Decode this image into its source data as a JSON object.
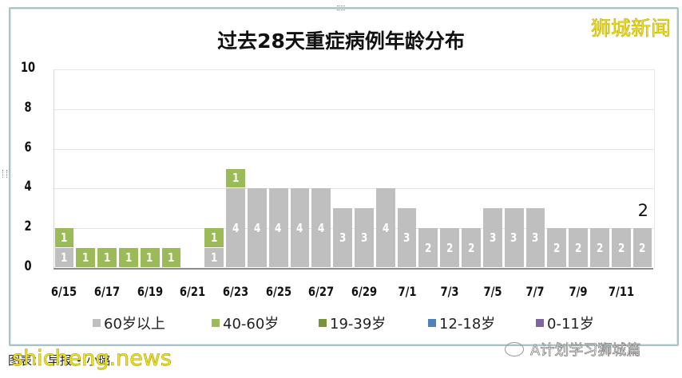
{
  "chart_data": {
    "type": "bar",
    "stacked": true,
    "title": "过去28天重症病例年龄分布",
    "xlabel": "",
    "ylabel": "",
    "ylim": [
      0,
      10
    ],
    "yticks": [
      0,
      2,
      4,
      6,
      8,
      10
    ],
    "grid": true,
    "legend_position": "bottom",
    "categories": [
      "6/15",
      "6/16",
      "6/17",
      "6/18",
      "6/19",
      "6/20",
      "6/21",
      "6/22",
      "6/23",
      "6/24",
      "6/25",
      "6/26",
      "6/27",
      "6/28",
      "6/29",
      "6/30",
      "7/1",
      "7/2",
      "7/3",
      "7/4",
      "7/5",
      "7/6",
      "7/7",
      "7/8",
      "7/9",
      "7/10",
      "7/11",
      "7/12"
    ],
    "xtick_labels": [
      "6/15",
      "6/17",
      "6/19",
      "6/21",
      "6/23",
      "6/25",
      "6/27",
      "6/29",
      "7/1",
      "7/3",
      "7/5",
      "7/7",
      "7/9",
      "7/11"
    ],
    "series": [
      {
        "name": "60岁以上",
        "color": "#bfbfbf",
        "values": [
          1,
          0,
          0,
          0,
          0,
          0,
          0,
          1,
          4,
          4,
          4,
          4,
          4,
          3,
          3,
          4,
          3,
          2,
          2,
          2,
          3,
          3,
          3,
          2,
          2,
          2,
          2,
          2
        ]
      },
      {
        "name": "40-60岁",
        "color": "#9bbb59",
        "values": [
          1,
          1,
          1,
          1,
          1,
          1,
          0,
          1,
          1,
          0,
          0,
          0,
          0,
          0,
          0,
          0,
          0,
          0,
          0,
          0,
          0,
          0,
          0,
          0,
          0,
          0,
          0,
          0
        ]
      },
      {
        "name": "19-39岁",
        "color": "#77933c",
        "values": [
          0,
          0,
          0,
          0,
          0,
          0,
          0,
          0,
          0,
          0,
          0,
          0,
          0,
          0,
          0,
          0,
          0,
          0,
          0,
          0,
          0,
          0,
          0,
          0,
          0,
          0,
          0,
          0
        ]
      },
      {
        "name": "12-18岁",
        "color": "#4f81bd",
        "values": [
          0,
          0,
          0,
          0,
          0,
          0,
          0,
          0,
          0,
          0,
          0,
          0,
          0,
          0,
          0,
          0,
          0,
          0,
          0,
          0,
          0,
          0,
          0,
          0,
          0,
          0,
          0,
          0
        ]
      },
      {
        "name": "0-11岁",
        "color": "#8064a2",
        "values": [
          0,
          0,
          0,
          0,
          0,
          0,
          0,
          0,
          0,
          0,
          0,
          0,
          0,
          0,
          0,
          0,
          0,
          0,
          0,
          0,
          0,
          0,
          0,
          0,
          0,
          0,
          0,
          0
        ]
      }
    ],
    "annotations": [
      {
        "category": "7/12",
        "text": "2"
      }
    ]
  },
  "watermark": "狮城新闻",
  "credit": "图表： 早报 • 小璐",
  "site_watermark": "shicheng.news",
  "wechat_source": "A计划学习狮城篇"
}
